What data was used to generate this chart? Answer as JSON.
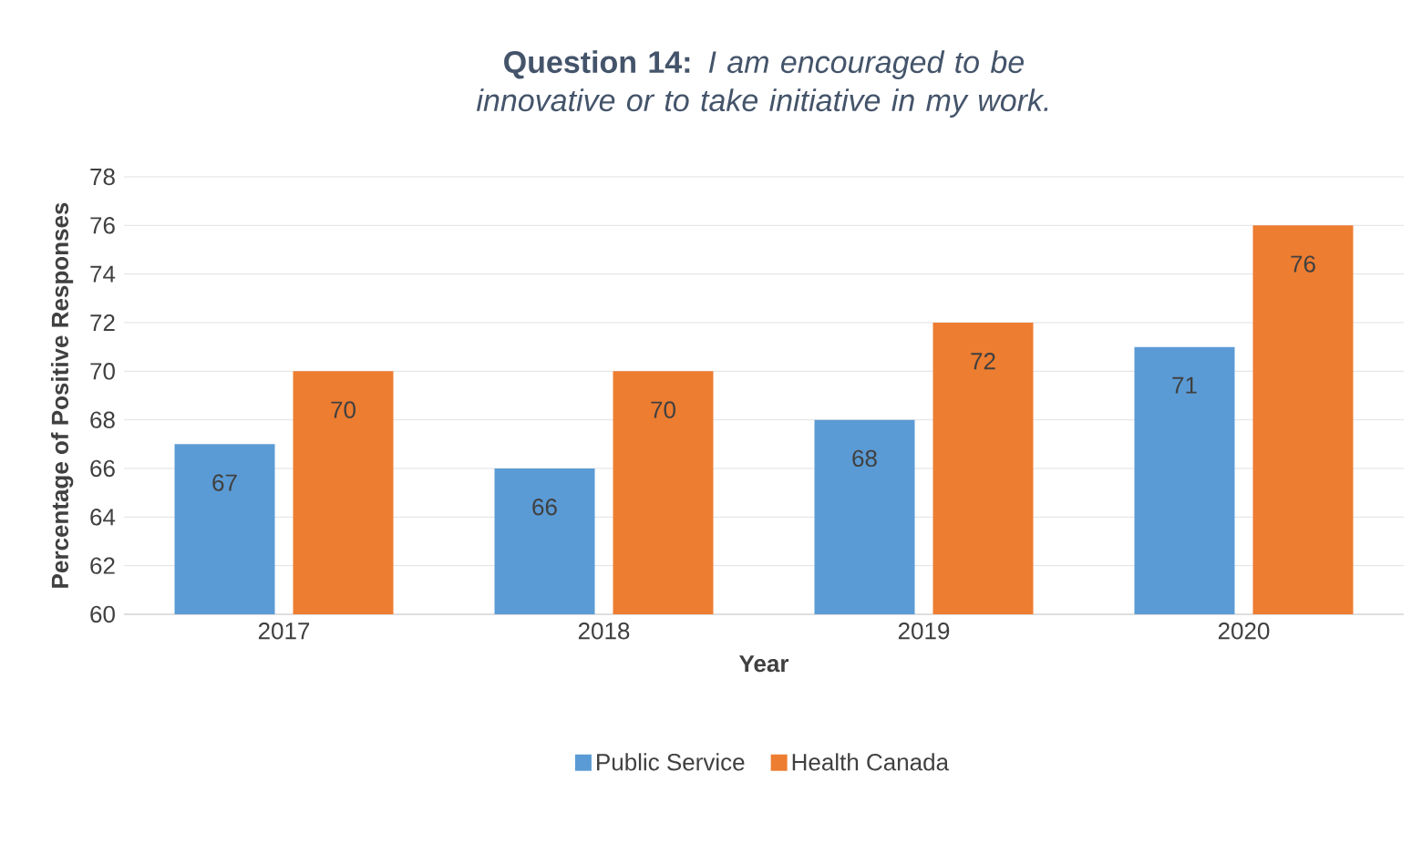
{
  "chart_data": {
    "type": "bar",
    "title": "**Question 14:** *I am encouraged to be innovative or to take initiative in my work.*",
    "xlabel": "Year",
    "ylabel": "Percentage of Positive Responses",
    "categories": [
      "2017",
      "2018",
      "2019",
      "2020"
    ],
    "series": [
      {
        "name": "Public Service",
        "color": "#5b9bd5",
        "values": [
          67,
          66,
          68,
          71
        ]
      },
      {
        "name": "Health Canada",
        "color": "#ed7d31",
        "values": [
          70,
          70,
          72,
          76
        ]
      }
    ],
    "ylim": [
      60,
      78
    ],
    "yticks": [
      60,
      62,
      64,
      66,
      68,
      70,
      72,
      74,
      76,
      78
    ],
    "grid": "y",
    "legend": "bottom",
    "data_labels": true
  }
}
